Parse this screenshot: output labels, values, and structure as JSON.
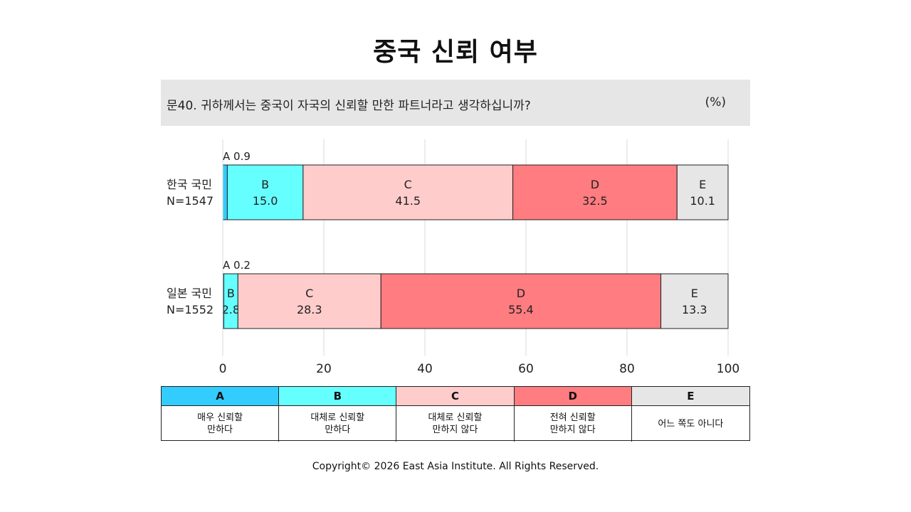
{
  "title": "중국 신뢰 여부",
  "question": {
    "text": "문40. 귀하께서는 중국이 자국의 신뢰할 만한 파트너라고 생각하십니까?",
    "unit": "(%)"
  },
  "chart_data": {
    "type": "bar",
    "orientation": "horizontal-stacked",
    "xlim": [
      0,
      100
    ],
    "xticks": [
      0,
      20,
      40,
      60,
      80,
      100
    ],
    "grid": true,
    "categories": [
      {
        "name": "한국 국민",
        "n": "N=1547"
      },
      {
        "name": "일본 국민",
        "n": "N=1552"
      }
    ],
    "series": [
      {
        "name": "A",
        "values": [
          0.9,
          0.2
        ],
        "color": "#33ccff"
      },
      {
        "name": "B",
        "values": [
          15.0,
          2.8
        ],
        "color": "#66ffff"
      },
      {
        "name": "C",
        "values": [
          41.5,
          28.3
        ],
        "color": "#ffcccc"
      },
      {
        "name": "D",
        "values": [
          32.5,
          55.4
        ],
        "color": "#ff7c80"
      },
      {
        "name": "E",
        "values": [
          10.1,
          13.3
        ],
        "color": "#e6e6e6"
      }
    ],
    "value_labels": [
      [
        "A 0.9",
        "15.0",
        "41.5",
        "32.5",
        "10.1"
      ],
      [
        "A 0.2",
        "2.8",
        "28.3",
        "55.4",
        "13.3"
      ]
    ]
  },
  "legend": {
    "items": [
      {
        "key": "A",
        "desc": "매우 신뢰할\n만하다",
        "color": "#33ccff"
      },
      {
        "key": "B",
        "desc": "대체로 신뢰할\n만하다",
        "color": "#66ffff"
      },
      {
        "key": "C",
        "desc": "대체로 신뢰할\n만하지 않다",
        "color": "#ffcccc"
      },
      {
        "key": "D",
        "desc": "전혀 신뢰할\n만하지 않다",
        "color": "#ff7c80"
      },
      {
        "key": "E",
        "desc": "어느 쪽도 아니다",
        "color": "#e6e6e6"
      }
    ]
  },
  "copyright": "Copyright© 2026 East Asia Institute. All Rights Reserved."
}
